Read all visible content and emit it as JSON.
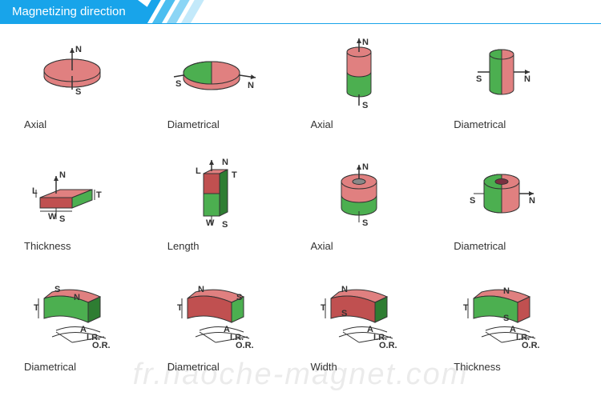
{
  "header": {
    "title": "Magnetizing direction"
  },
  "colors": {
    "header_bg": "#18a4ea",
    "stripe_colors": [
      "#18a4ea",
      "#4bbef0",
      "#8bd5f5",
      "#c3e9fa"
    ],
    "north": "#e08080",
    "south": "#4caf50",
    "north_dark": "#c05050",
    "south_dark": "#2e7d32",
    "outline": "#333333",
    "label_text": "#333333"
  },
  "cells": [
    {
      "type": "disc-axial",
      "label": "Axial"
    },
    {
      "type": "disc-diametrical",
      "label": "Diametrical"
    },
    {
      "type": "cylinder-axial",
      "label": "Axial"
    },
    {
      "type": "cylinder-diametrical",
      "label": "Diametrical"
    },
    {
      "type": "block-thickness",
      "label": "Thickness"
    },
    {
      "type": "block-length",
      "label": "Length"
    },
    {
      "type": "ring-axial",
      "label": "Axial"
    },
    {
      "type": "ring-diametrical",
      "label": "Diametrical"
    },
    {
      "type": "arc-diametrical",
      "label": "Diametrical"
    },
    {
      "type": "arc-diametrical-2",
      "label": "Diametrical"
    },
    {
      "type": "arc-width",
      "label": "Width"
    },
    {
      "type": "arc-thickness",
      "label": "Thickness"
    }
  ],
  "glyphs": {
    "N": "N",
    "S": "S",
    "L": "L",
    "W": "W",
    "T": "T",
    "A": "A",
    "IR": "I.R.",
    "OR": "O.R."
  },
  "watermark": "fr.haoche-magnet.com"
}
